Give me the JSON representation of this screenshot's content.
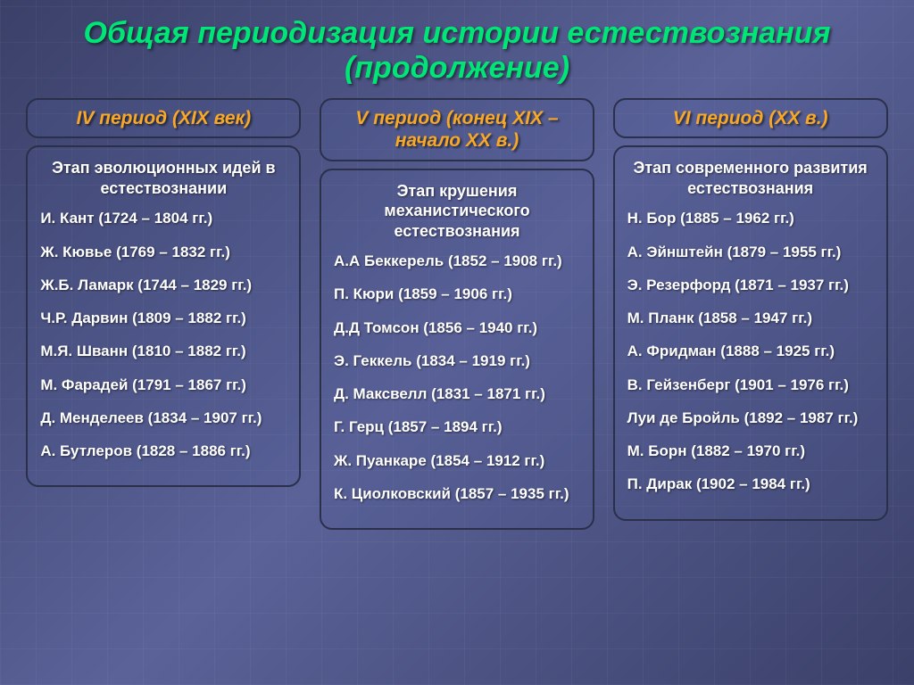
{
  "title": "Общая периодизация истории естествознания (продолжение)",
  "colors": {
    "title": "#00e676",
    "period_header": "#f9a825",
    "text": "#ffffff",
    "border": "#2a2f4a",
    "background_start": "#3a4068",
    "background_end": "#5a6298"
  },
  "columns": [
    {
      "period": "IV период (XIX век)",
      "stage": "Этап эволюционных идей в естествознании",
      "persons": [
        "И. Кант (1724 – 1804 гг.)",
        "Ж. Кювье (1769 – 1832 гг.)",
        "Ж.Б. Ламарк (1744 – 1829 гг.)",
        "Ч.Р. Дарвин (1809 – 1882 гг.)",
        "М.Я. Шванн (1810 – 1882 гг.)",
        "М. Фарадей (1791 – 1867 гг.)",
        "Д. Менделеев (1834 – 1907 гг.)",
        "А. Бутлеров (1828 – 1886 гг.)"
      ]
    },
    {
      "period": "V период (конец XIX – начало XX в.)",
      "stage": "Этап крушения механистического естествознания",
      "persons": [
        "А.А Беккерель (1852 – 1908 гг.)",
        "П. Кюри (1859 – 1906 гг.)",
        "Д.Д Томсон (1856 – 1940 гг.)",
        "Э. Геккель (1834 – 1919 гг.)",
        "Д. Максвелл (1831 – 1871 гг.)",
        "Г. Герц (1857 – 1894 гг.)",
        "Ж. Пуанкаре (1854 – 1912 гг.)",
        "К. Циолковский (1857 – 1935 гг.)"
      ]
    },
    {
      "period": "VI период (XX в.)",
      "stage": "Этап современного развития естествознания",
      "persons": [
        "Н. Бор (1885 – 1962 гг.)",
        "А. Эйнштейн (1879 – 1955 гг.)",
        "Э. Резерфорд (1871 – 1937 гг.)",
        "М. Планк (1858 – 1947 гг.)",
        "А. Фридман (1888 – 1925 гг.)",
        "В. Гейзенберг (1901 – 1976 гг.)",
        "Луи де Бройль (1892 – 1987 гг.)",
        "М. Борн (1882 – 1970 гг.)",
        "П. Дирак (1902 – 1984 гг.)"
      ]
    }
  ]
}
